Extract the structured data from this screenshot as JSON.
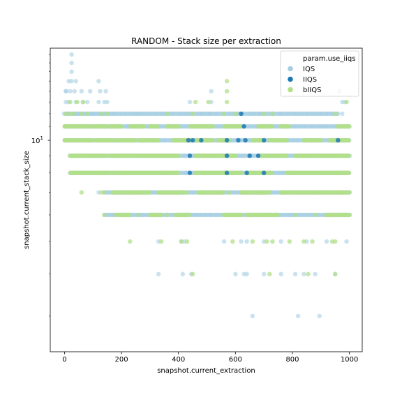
{
  "chart_data": {
    "type": "scatter",
    "title": "RANDOM - Stack size per extraction",
    "xlabel": "snapshot.current_extraction",
    "ylabel": "snapshot.current_stack_size",
    "xlim": [
      -50,
      1045
    ],
    "ylim": [
      2.35,
      18.8
    ],
    "yscale": "log",
    "x_ticks": [
      0,
      200,
      400,
      600,
      800,
      1000
    ],
    "y_ticks": [
      {
        "value": 10,
        "label": "10",
        "exp": "1"
      }
    ],
    "grid": false,
    "legend": {
      "title": "param.use_iiqs",
      "placement": "top-right",
      "entries": [
        {
          "label": "IQS",
          "color": "#a6cee3"
        },
        {
          "label": "IIQS",
          "color": "#1f78b4"
        },
        {
          "label": "bIIQS",
          "color": "#b2df8a"
        }
      ]
    },
    "series": [
      {
        "name": "IQS",
        "color": "#a6cee3",
        "bands": [
          {
            "y": 9,
            "ranges": [
              [
                20,
                1000
              ]
            ]
          },
          {
            "y": 8,
            "ranges": [
              [
                20,
                1000
              ]
            ]
          },
          {
            "y": 7,
            "ranges": [
              [
                140,
                1000
              ]
            ]
          },
          {
            "y": 6,
            "ranges": [
              [
                140,
                1000
              ]
            ]
          },
          {
            "y": 10,
            "ranges": [
              [
                0,
                1000
              ]
            ]
          },
          {
            "y": 11,
            "ranges": [
              [
                0,
                1000
              ]
            ]
          },
          {
            "y": 12,
            "ranges": [
              [
                0,
                960
              ]
            ]
          }
        ],
        "points": [
          [
            25,
            18
          ],
          [
            25,
            17
          ],
          [
            25,
            16
          ],
          [
            25,
            15
          ],
          [
            15,
            15
          ],
          [
            40,
            15
          ],
          [
            120,
            15
          ],
          [
            5,
            14
          ],
          [
            20,
            14
          ],
          [
            35,
            14
          ],
          [
            60,
            14
          ],
          [
            90,
            14
          ],
          [
            125,
            14
          ],
          [
            145,
            14
          ],
          [
            5,
            13
          ],
          [
            15,
            13
          ],
          [
            40,
            13
          ],
          [
            65,
            13
          ],
          [
            80,
            13
          ],
          [
            120,
            13
          ],
          [
            140,
            13
          ],
          [
            150,
            13
          ],
          [
            440,
            13
          ],
          [
            515,
            13
          ],
          [
            975,
            13
          ],
          [
            985,
            13
          ],
          [
            15,
            12
          ],
          [
            45,
            12
          ],
          [
            100,
            12
          ],
          [
            125,
            12
          ],
          [
            140,
            12
          ],
          [
            150,
            12
          ],
          [
            250,
            12
          ],
          [
            480,
            12
          ],
          [
            510,
            12
          ],
          [
            600,
            12
          ],
          [
            685,
            12
          ],
          [
            730,
            12
          ],
          [
            975,
            12
          ],
          [
            5,
            14
          ],
          [
            515,
            14
          ],
          [
            965,
            14
          ],
          [
            120,
            7
          ],
          [
            460,
            6
          ],
          [
            500,
            7
          ],
          [
            540,
            7
          ],
          [
            960,
            7
          ],
          [
            410,
            5
          ],
          [
            420,
            5
          ],
          [
            330,
            5
          ],
          [
            560,
            5
          ],
          [
            620,
            5
          ],
          [
            640,
            5
          ],
          [
            700,
            5
          ],
          [
            760,
            5
          ],
          [
            850,
            5
          ],
          [
            920,
            5
          ],
          [
            990,
            5
          ],
          [
            330,
            4
          ],
          [
            415,
            4
          ],
          [
            445,
            4
          ],
          [
            600,
            4
          ],
          [
            630,
            4
          ],
          [
            640,
            4
          ],
          [
            700,
            4
          ],
          [
            760,
            4
          ],
          [
            810,
            4
          ],
          [
            840,
            4
          ],
          [
            880,
            4
          ],
          [
            950,
            4
          ],
          [
            660,
            3
          ],
          [
            820,
            3
          ],
          [
            895,
            3
          ]
        ]
      },
      {
        "name": "IIQS",
        "color": "#1f78b4",
        "bands": [],
        "points": [
          [
            435,
            10
          ],
          [
            450,
            10
          ],
          [
            480,
            10
          ],
          [
            570,
            10
          ],
          [
            610,
            10
          ],
          [
            635,
            10
          ],
          [
            700,
            10
          ],
          [
            960,
            10
          ],
          [
            440,
            9
          ],
          [
            570,
            9
          ],
          [
            650,
            9
          ],
          [
            680,
            9
          ],
          [
            440,
            8
          ],
          [
            570,
            8
          ],
          [
            640,
            8
          ],
          [
            700,
            8
          ],
          [
            620,
            12
          ],
          [
            630,
            11
          ]
        ]
      },
      {
        "name": "bIIQS",
        "color": "#b2df8a",
        "bands": [
          {
            "y": 9,
            "ranges": [
              [
                20,
                150
              ],
              [
                160,
                400
              ],
              [
                460,
                600
              ],
              [
                690,
                780
              ],
              [
                810,
                1000
              ]
            ]
          },
          {
            "y": 8,
            "ranges": [
              [
                20,
                160
              ],
              [
                170,
                400
              ],
              [
                460,
                620
              ],
              [
                640,
                730
              ],
              [
                780,
                1000
              ]
            ]
          },
          {
            "y": 7,
            "ranges": [
              [
                170,
                300
              ],
              [
                330,
                420
              ],
              [
                470,
                560
              ],
              [
                620,
                720
              ],
              [
                760,
                1000
              ]
            ]
          },
          {
            "y": 6,
            "ranges": [
              [
                190,
                230
              ],
              [
                300,
                340
              ],
              [
                390,
                440
              ],
              [
                560,
                620
              ],
              [
                640,
                750
              ],
              [
                920,
                1000
              ]
            ]
          },
          {
            "y": 10,
            "ranges": [
              [
                0,
                100
              ],
              [
                110,
                170
              ],
              [
                180,
                250
              ],
              [
                260,
                330
              ],
              [
                380,
                440
              ],
              [
                460,
                520
              ],
              [
                540,
                580
              ],
              [
                660,
                700
              ],
              [
                720,
                780
              ],
              [
                840,
                900
              ],
              [
                930,
                1000
              ]
            ]
          },
          {
            "y": 11,
            "ranges": [
              [
                0,
                90
              ],
              [
                100,
                150
              ],
              [
                160,
                200
              ],
              [
                230,
                280
              ],
              [
                300,
                330
              ],
              [
                360,
                400
              ],
              [
                440,
                520
              ],
              [
                560,
                620
              ],
              [
                680,
                730
              ],
              [
                760,
                790
              ],
              [
                960,
                1000
              ]
            ]
          }
        ],
        "points": [
          [
            5,
            12
          ],
          [
            20,
            12
          ],
          [
            30,
            12
          ],
          [
            60,
            12
          ],
          [
            80,
            12
          ],
          [
            130,
            12
          ],
          [
            150,
            12
          ],
          [
            360,
            12
          ],
          [
            450,
            12
          ],
          [
            560,
            12
          ],
          [
            600,
            12
          ],
          [
            700,
            12
          ],
          [
            730,
            12
          ],
          [
            950,
            12
          ],
          [
            20,
            13
          ],
          [
            45,
            13
          ],
          [
            65,
            13
          ],
          [
            460,
            13
          ],
          [
            505,
            13
          ],
          [
            570,
            13
          ],
          [
            990,
            13
          ],
          [
            570,
            14
          ],
          [
            570,
            15
          ],
          [
            60,
            7
          ],
          [
            130,
            7
          ],
          [
            140,
            7
          ],
          [
            430,
            7
          ],
          [
            580,
            7
          ],
          [
            700,
            7
          ],
          [
            770,
            7
          ],
          [
            890,
            7
          ],
          [
            140,
            6
          ],
          [
            180,
            6
          ],
          [
            260,
            6
          ],
          [
            360,
            6
          ],
          [
            580,
            6
          ],
          [
            810,
            6
          ],
          [
            880,
            6
          ],
          [
            230,
            5
          ],
          [
            340,
            5
          ],
          [
            410,
            5
          ],
          [
            430,
            5
          ],
          [
            590,
            5
          ],
          [
            660,
            5
          ],
          [
            710,
            5
          ],
          [
            730,
            5
          ],
          [
            790,
            5
          ],
          [
            840,
            5
          ],
          [
            870,
            5
          ],
          [
            940,
            5
          ],
          [
            950,
            5
          ],
          [
            450,
            4
          ],
          [
            720,
            4
          ],
          [
            855,
            4
          ],
          [
            950,
            4
          ]
        ]
      }
    ]
  }
}
